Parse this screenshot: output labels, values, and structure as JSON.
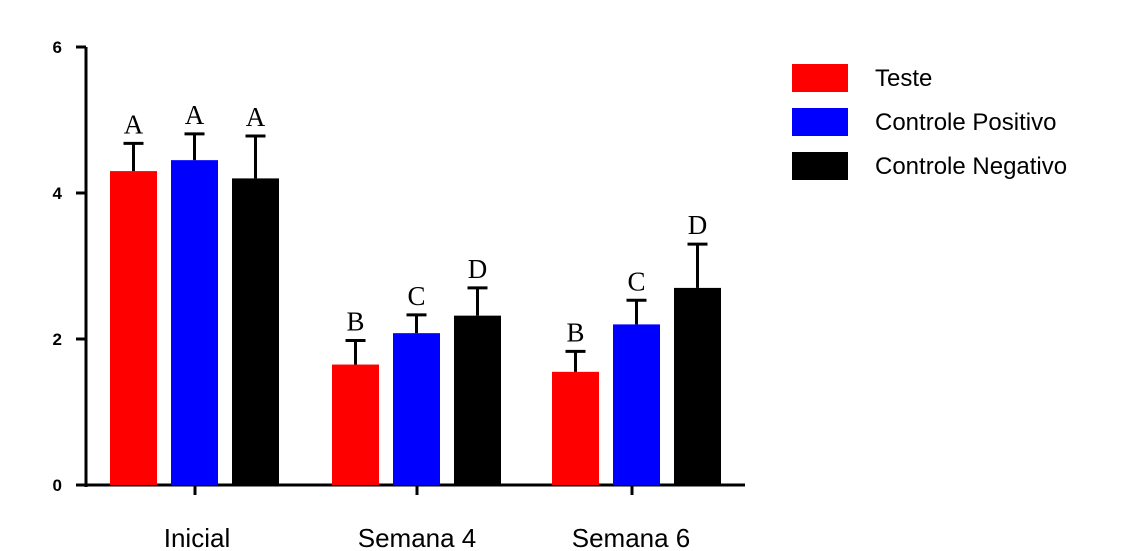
{
  "chart_data": {
    "type": "bar",
    "categories": [
      "Inicial",
      "Semana 4",
      "Semana 6"
    ],
    "series": [
      {
        "name": "Teste",
        "color": "#ff0000",
        "values": [
          4.3,
          1.65,
          1.55
        ],
        "errors": [
          0.38,
          0.33,
          0.28
        ],
        "letters": [
          "A",
          "B",
          "B"
        ]
      },
      {
        "name": "Controle Positivo",
        "color": "#0000ff",
        "values": [
          4.45,
          2.08,
          2.2
        ],
        "errors": [
          0.36,
          0.25,
          0.33
        ],
        "letters": [
          "A",
          "C",
          "C"
        ]
      },
      {
        "name": "Controle Negativo",
        "color": "#000000",
        "values": [
          4.2,
          2.32,
          2.7
        ],
        "errors": [
          0.58,
          0.38,
          0.6
        ],
        "letters": [
          "A",
          "D",
          "D"
        ]
      }
    ],
    "yticks": [
      0,
      2,
      4,
      6
    ],
    "ylim": [
      0,
      6
    ],
    "title": "",
    "xlabel": "",
    "ylabel": "",
    "grid": false,
    "legend_position": "top-right"
  }
}
